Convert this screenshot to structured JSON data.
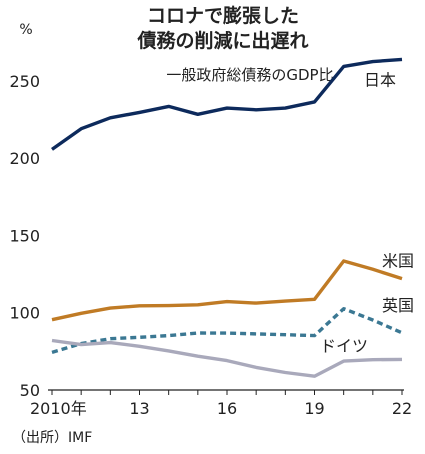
{
  "chart_data": {
    "type": "line",
    "title": [
      "コロナで膨張した",
      "債務の削減に出遅れ"
    ],
    "subtitle": "一般政府総債務のGDP比",
    "unit_label": "%",
    "source": "（出所）IMF",
    "x": [
      2010,
      2011,
      2012,
      2013,
      2014,
      2015,
      2016,
      2017,
      2018,
      2019,
      2020,
      2021,
      2022
    ],
    "xlim": [
      2010,
      2022
    ],
    "x_ticks": [
      {
        "value": 2010,
        "label": "2010年"
      },
      {
        "value": 2013,
        "label": "13"
      },
      {
        "value": 2016,
        "label": "16"
      },
      {
        "value": 2019,
        "label": "19"
      },
      {
        "value": 2022,
        "label": "22"
      }
    ],
    "ylim": [
      50,
      270
    ],
    "y_ticks": [
      50,
      100,
      150,
      200,
      250
    ],
    "grid": false,
    "series": [
      {
        "name": "日本",
        "color": "#0d2a5c",
        "dash": "solid",
        "values": [
          205.7,
          219.1,
          226.1,
          229.6,
          233.5,
          228.4,
          232.4,
          231.3,
          232.4,
          236.4,
          259.4,
          262.5,
          263.9
        ]
      },
      {
        "name": "米国",
        "color": "#c07b25",
        "dash": "solid",
        "values": [
          95.5,
          99.6,
          103.0,
          104.5,
          104.6,
          105.1,
          107.2,
          106.2,
          107.5,
          108.7,
          133.5,
          128.1,
          122.1
        ]
      },
      {
        "name": "英国",
        "color": "#3b7893",
        "dash": "dashed",
        "values": [
          74.3,
          80.0,
          83.2,
          84.1,
          85.2,
          86.9,
          86.8,
          86.3,
          85.8,
          85.2,
          102.6,
          95.3,
          87.0
        ]
      },
      {
        "name": "ドイツ",
        "color": "#a9a9bb",
        "dash": "solid",
        "values": [
          82.0,
          79.4,
          80.7,
          78.3,
          75.3,
          71.9,
          69.0,
          64.6,
          61.3,
          58.9,
          68.7,
          69.6,
          69.8
        ]
      }
    ]
  }
}
